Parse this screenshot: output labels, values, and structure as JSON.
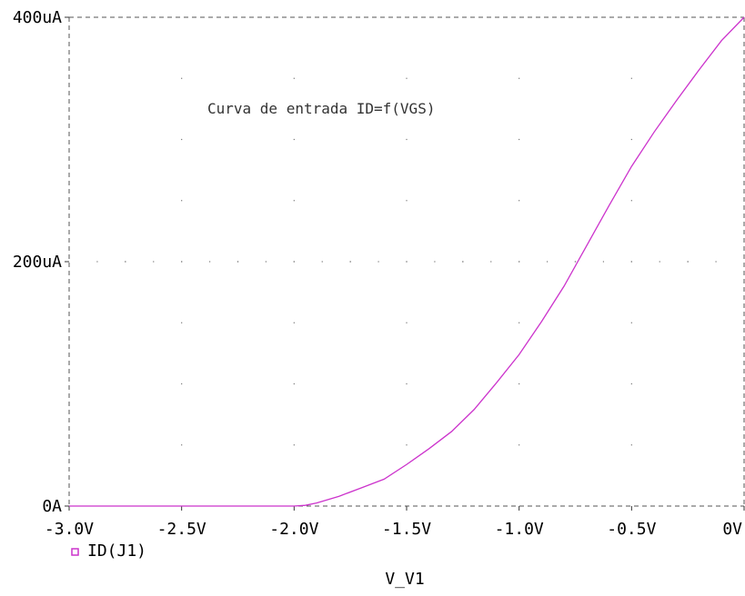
{
  "chart_data": {
    "type": "line",
    "title": "",
    "annotation": "Curva de entrada ID=f(VGS)",
    "xlabel": "V_V1",
    "ylabel": "",
    "xlim": [
      -3.0,
      0.0
    ],
    "ylim": [
      0,
      400
    ],
    "x_ticks": [
      {
        "value": -3.0,
        "label": "-3.0V"
      },
      {
        "value": -2.5,
        "label": "-2.5V"
      },
      {
        "value": -2.0,
        "label": "-2.0V"
      },
      {
        "value": -1.5,
        "label": "-1.5V"
      },
      {
        "value": -1.0,
        "label": "-1.0V"
      },
      {
        "value": -0.5,
        "label": "-0.5V"
      },
      {
        "value": 0.0,
        "label": "0V"
      }
    ],
    "y_ticks": [
      {
        "value": 0,
        "label": "0A"
      },
      {
        "value": 200,
        "label": "200uA"
      },
      {
        "value": 400,
        "label": "400uA"
      }
    ],
    "grid": true,
    "legend_position": "bottom-left",
    "series": [
      {
        "name": "ID(J1)",
        "color": "#cc33cc",
        "x": [
          -3.0,
          -2.5,
          -2.0,
          -1.95,
          -1.9,
          -1.8,
          -1.7,
          -1.6,
          -1.5,
          -1.4,
          -1.3,
          -1.2,
          -1.1,
          -1.0,
          -0.9,
          -0.8,
          -0.7,
          -0.6,
          -0.5,
          -0.4,
          -0.3,
          -0.2,
          -0.1,
          0.0
        ],
        "y": [
          0,
          0,
          0,
          0.6,
          2.5,
          8,
          15,
          22,
          34,
          47,
          61,
          79,
          101,
          124,
          151,
          180,
          213,
          246,
          278,
          306,
          332,
          357,
          381,
          400
        ]
      }
    ]
  }
}
